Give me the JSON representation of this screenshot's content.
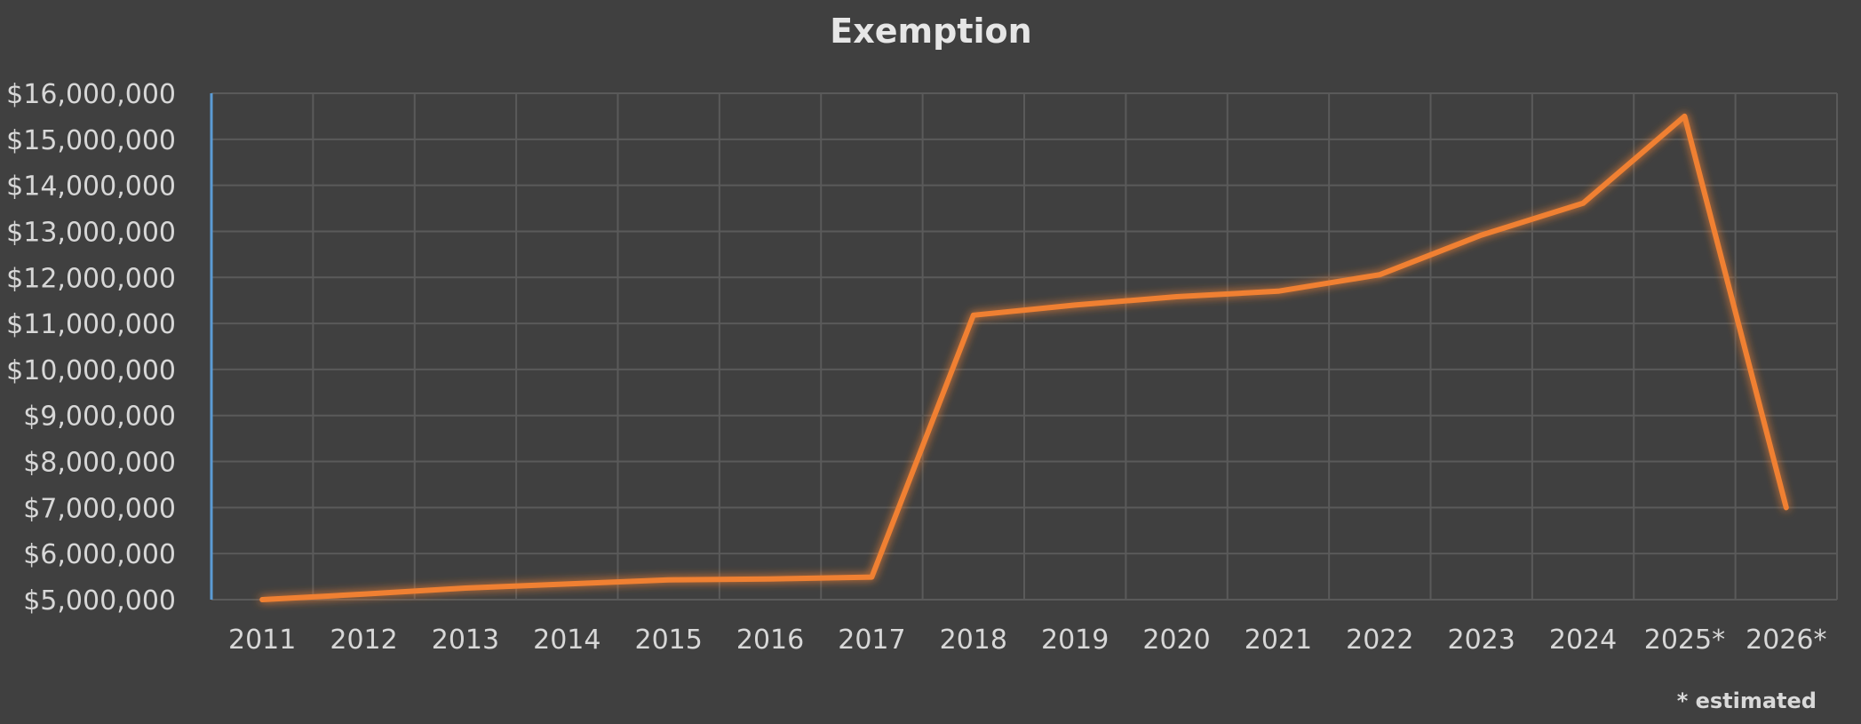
{
  "chart_data": {
    "type": "line",
    "title": "Exemption",
    "xlabel": "",
    "ylabel": "",
    "categories": [
      "2011",
      "2012",
      "2013",
      "2014",
      "2015",
      "2016",
      "2017",
      "2018",
      "2019",
      "2020",
      "2021",
      "2022",
      "2023",
      "2024",
      "2025*",
      "2026*"
    ],
    "series": [
      {
        "values": [
          5000000,
          5120000,
          5250000,
          5340000,
          5430000,
          5450000,
          5490000,
          11180000,
          11400000,
          11580000,
          11700000,
          12060000,
          12920000,
          13610000,
          15500000,
          7000000
        ]
      }
    ],
    "ylim": [
      5000000,
      16000000
    ],
    "ytick_labels": [
      "$5,000,000",
      "$6,000,000",
      "$7,000,000",
      "$8,000,000",
      "$9,000,000",
      "$10,000,000",
      "$11,000,000",
      "$12,000,000",
      "$13,000,000",
      "$14,000,000",
      "$15,000,000",
      "$16,000,000"
    ],
    "grid": true,
    "legend": "none",
    "line_color": "#f08030",
    "background_color": "#404040",
    "gridline_color": "#5a5a5a",
    "axis_color": "#5b9bd5",
    "footnote": "* estimated"
  }
}
